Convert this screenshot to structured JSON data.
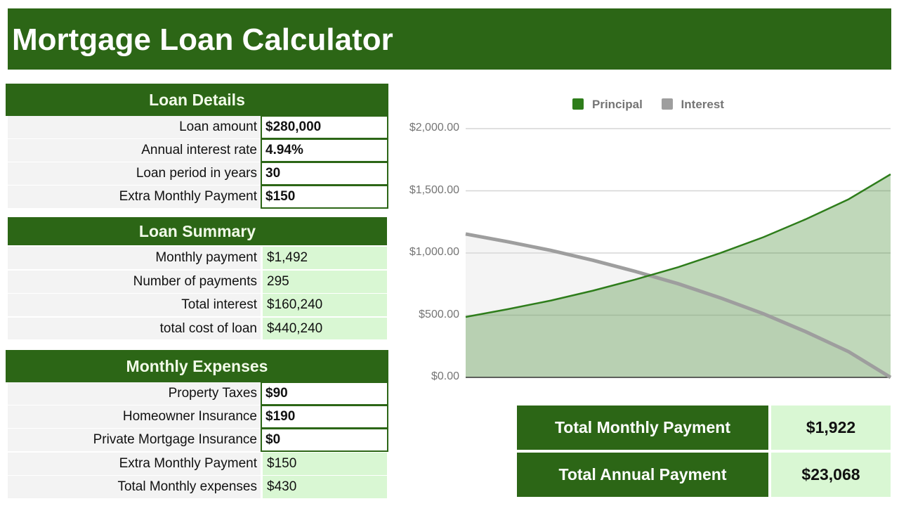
{
  "title": "Mortgage Loan Calculator",
  "loan_details": {
    "header": "Loan Details",
    "rows": [
      {
        "label": "Loan amount",
        "value": "$280,000"
      },
      {
        "label": "Annual interest rate",
        "value": "4.94%"
      },
      {
        "label": "Loan period in years",
        "value": "30"
      },
      {
        "label": "Extra Monthly Payment",
        "value": "$150"
      }
    ]
  },
  "loan_summary": {
    "header": "Loan Summary",
    "rows": [
      {
        "label": "Monthly payment",
        "value": "$1,492"
      },
      {
        "label": "Number of payments",
        "value": "295"
      },
      {
        "label": "Total interest",
        "value": "$160,240"
      },
      {
        "label": "total cost of loan",
        "value": "$440,240"
      }
    ]
  },
  "monthly_expenses": {
    "header": "Monthly Expenses",
    "rows": [
      {
        "label": "Property Taxes",
        "value": "$90"
      },
      {
        "label": "Homeowner Insurance",
        "value": "$190"
      },
      {
        "label": "Private Mortgage Insurance",
        "value": "$0"
      },
      {
        "label": "Extra Monthly Payment",
        "value": "$150"
      },
      {
        "label": "Total Monthly expenses",
        "value": "$430"
      }
    ]
  },
  "totals": {
    "monthly_label": "Total Monthly Payment",
    "monthly_value": "$1,922",
    "annual_label": "Total Annual Payment",
    "annual_value": "$23,068"
  },
  "chart_data": {
    "type": "area",
    "legend_position": "top",
    "grid": true,
    "ylim": [
      0,
      2000
    ],
    "yticks": [
      "$0.00",
      "$500.00",
      "$1,000.00",
      "$1,500.00",
      "$2,000.00"
    ],
    "ytick_values": [
      0,
      500,
      1000,
      1500,
      2000
    ],
    "x": [
      1,
      30,
      60,
      89,
      118,
      148,
      177,
      207,
      236,
      266,
      295
    ],
    "series": [
      {
        "name": "Principal",
        "color": "#2e7d1b",
        "values": [
          486,
          548,
          618,
          697,
          786,
          886,
          999,
          1127,
          1270,
          1432,
          1633
        ]
      },
      {
        "name": "Interest",
        "color": "#9e9e9e",
        "values": [
          1153,
          1091,
          1021,
          942,
          853,
          753,
          640,
          512,
          369,
          207,
          0
        ]
      }
    ]
  }
}
